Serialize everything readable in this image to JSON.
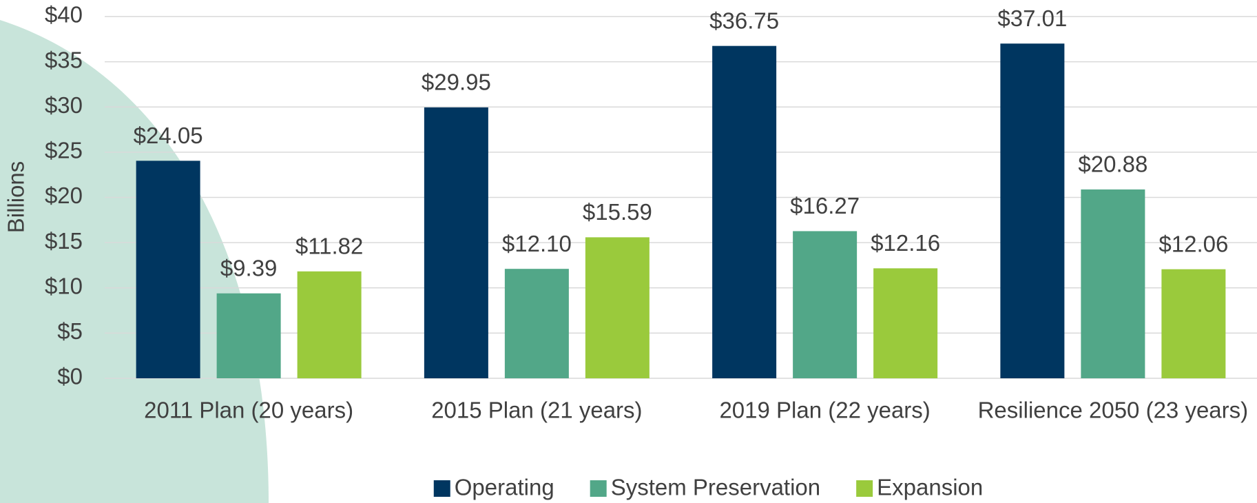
{
  "chart_data": {
    "type": "bar",
    "y_axis_label": "Billions",
    "categories": [
      "2011 Plan (20 years)",
      "2015 Plan (21 years)",
      "2019 Plan (22 years)",
      "Resilience 2050 (23 years)"
    ],
    "series": [
      {
        "name": "Operating",
        "color": "#003660",
        "values": [
          24.05,
          29.95,
          36.75,
          37.01
        ],
        "value_labels": [
          "$24.05",
          "$29.95",
          "$36.75",
          "$37.01"
        ]
      },
      {
        "name": "System Preservation",
        "color": "#52a788",
        "values": [
          9.39,
          12.1,
          16.27,
          20.88
        ],
        "value_labels": [
          "$9.39",
          "$12.10",
          "$16.27",
          "$20.88"
        ]
      },
      {
        "name": "Expansion",
        "color": "#9aca3c",
        "values": [
          11.82,
          15.59,
          12.16,
          12.06
        ],
        "value_labels": [
          "$11.82",
          "$15.59",
          "$12.16",
          "$12.06"
        ]
      }
    ],
    "ylim": [
      0,
      40
    ],
    "yticks": [
      {
        "value": 0,
        "label": "$0"
      },
      {
        "value": 5,
        "label": "$5"
      },
      {
        "value": 10,
        "label": "$10"
      },
      {
        "value": 15,
        "label": "$15"
      },
      {
        "value": 20,
        "label": "$20"
      },
      {
        "value": 25,
        "label": "$25"
      },
      {
        "value": 30,
        "label": "$30"
      },
      {
        "value": 35,
        "label": "$35"
      },
      {
        "value": 40,
        "label": "$40"
      }
    ],
    "grid": true,
    "legend": "bottom"
  }
}
